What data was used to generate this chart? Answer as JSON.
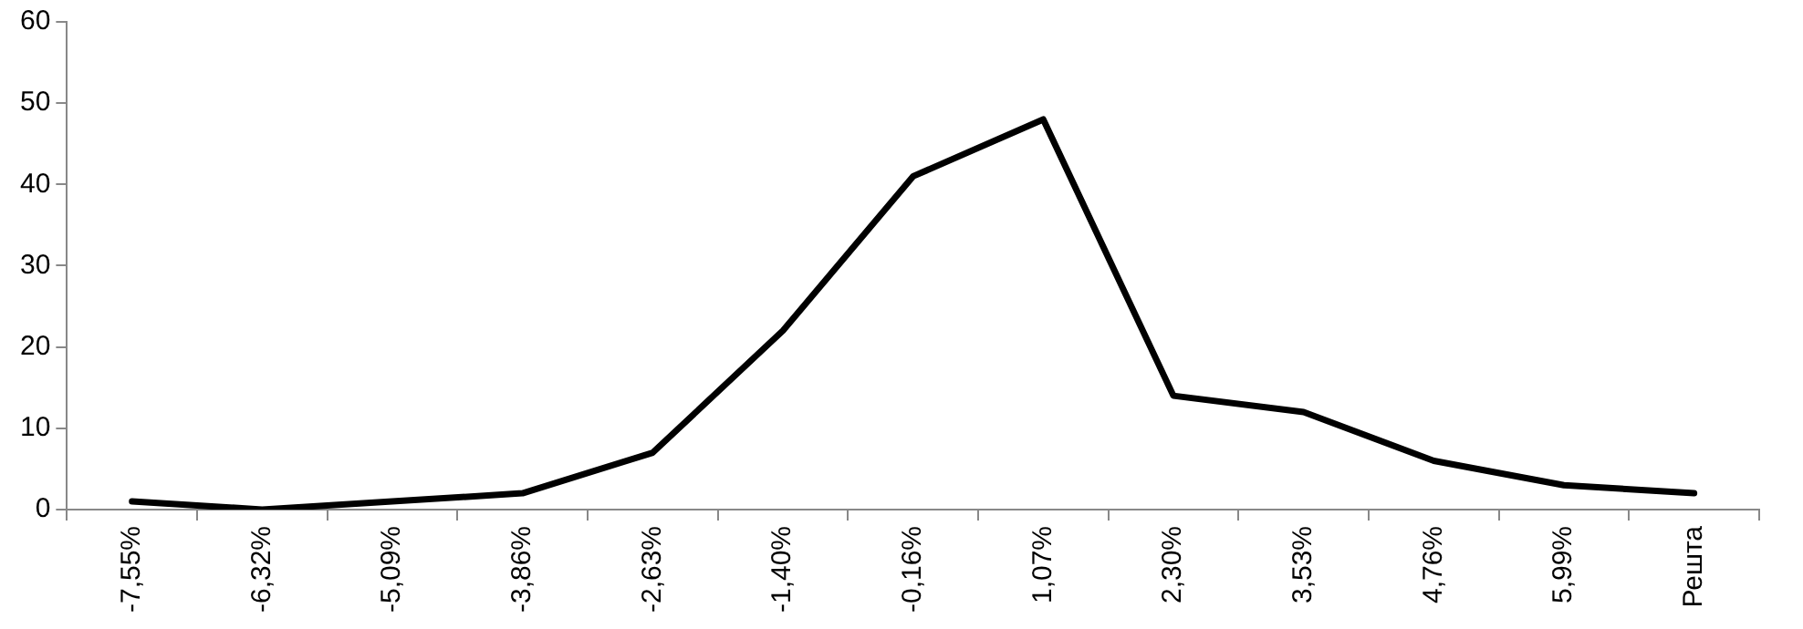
{
  "chart_data": {
    "type": "line",
    "categories": [
      "-7,55%",
      "-6,32%",
      "-5,09%",
      "-3,86%",
      "-2,63%",
      "-1,40%",
      "-0,16%",
      "1,07%",
      "2,30%",
      "3,53%",
      "4,76%",
      "5,99%",
      "Решта"
    ],
    "series": [
      {
        "color": "#000000",
        "values": [
          1,
          0,
          1,
          2,
          7,
          22,
          41,
          48,
          14,
          12,
          6,
          3,
          2
        ]
      }
    ],
    "ylim": [
      0,
      60
    ],
    "yticks": [
      0,
      10,
      20,
      30,
      40,
      50,
      60
    ],
    "grid": false,
    "legend": false,
    "marker": "none",
    "line_style": "solid"
  }
}
